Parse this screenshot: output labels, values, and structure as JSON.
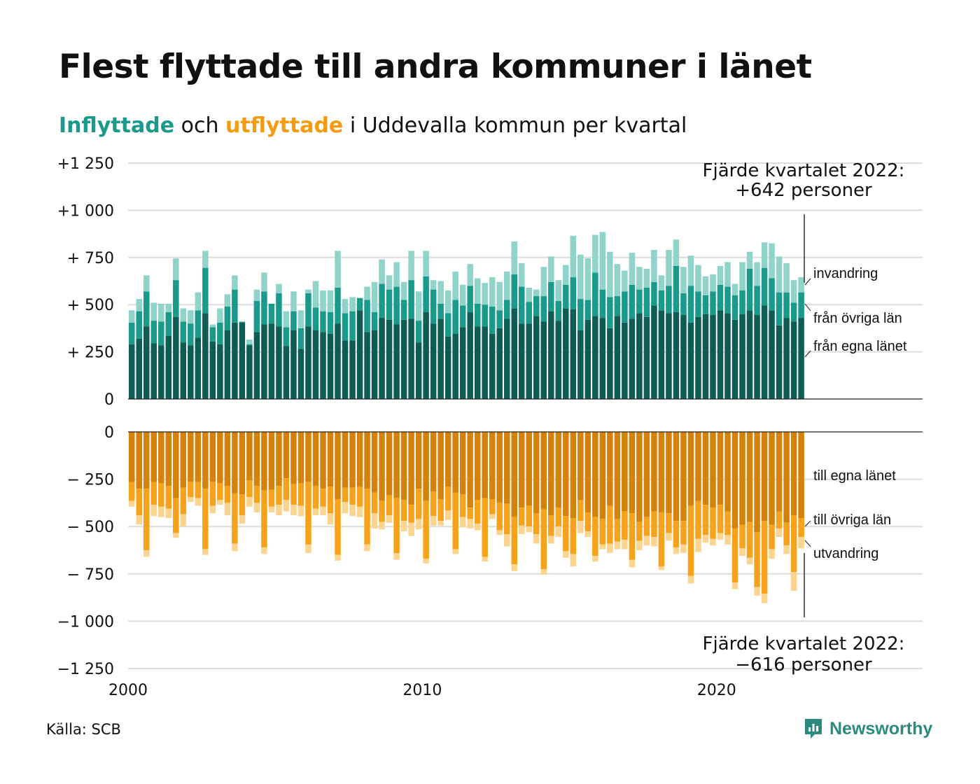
{
  "title": "Flest flyttade till andra kommuner i länet",
  "subtitle": {
    "in_word": "Inflyttade",
    "and_word": "och",
    "out_word": "utflyttade",
    "rest": "i Uddevalla kommun per kvartal"
  },
  "source": "Källa: SCB",
  "brand": "Newsworthy",
  "colors": {
    "in_own": "#0f5c54",
    "in_other": "#1a9a8a",
    "in_immig": "#8fd3ca",
    "out_own": "#d4820a",
    "out_other": "#f7a21b",
    "out_emig": "#fbd48f"
  },
  "chart_data": {
    "type": "bar",
    "stacked": true,
    "frequency": "quarterly",
    "period_start": "2000 Q1",
    "period_end": "2022 Q4",
    "xlim": [
      2000,
      2027
    ],
    "x_ticks": [
      "2000",
      "2010",
      "2020"
    ],
    "y_ticks_top": [
      "+1 250",
      "+1 000",
      "+ 750",
      "+ 500",
      "+ 250",
      "0"
    ],
    "y_ticks_bottom": [
      "0",
      "− 250",
      "− 500",
      "− 750",
      "−1 000",
      "−1 250"
    ],
    "ylim_in": [
      0,
      1250
    ],
    "ylim_out": [
      -1250,
      0
    ],
    "grid": true,
    "annotations": {
      "in": "Fjärde kvartalet 2022:\n+642 personer",
      "out": "Fjärde kvartalet 2022:\n−616 personer"
    },
    "in_labels": [
      "invandring",
      "från övriga län",
      "från egna länet"
    ],
    "out_labels": [
      "till egna länet",
      "till övriga län",
      "utvandring"
    ],
    "inflow": {
      "own_county": [
        290,
        320,
        385,
        295,
        285,
        335,
        435,
        300,
        285,
        325,
        455,
        305,
        290,
        365,
        405,
        405,
        285,
        355,
        395,
        400,
        385,
        280,
        365,
        265,
        385,
        365,
        355,
        345,
        400,
        310,
        310,
        470,
        355,
        365,
        430,
        420,
        395,
        420,
        425,
        300,
        460,
        400,
        425,
        330,
        345,
        380,
        460,
        385,
        385,
        345,
        375,
        425,
        480,
        400,
        400,
        440,
        410,
        465,
        415,
        480,
        475,
        365,
        420,
        440,
        430,
        375,
        440,
        405,
        425,
        455,
        435,
        495,
        470,
        455,
        460,
        445,
        405,
        435,
        450,
        445,
        470,
        455,
        420,
        450,
        470,
        445,
        495,
        470,
        390,
        430,
        410,
        430
      ],
      "other_counties": [
        115,
        145,
        185,
        120,
        125,
        125,
        195,
        110,
        115,
        145,
        240,
        75,
        115,
        125,
        175,
        5,
        5,
        165,
        175,
        105,
        175,
        100,
        100,
        110,
        175,
        120,
        110,
        115,
        190,
        145,
        155,
        65,
        170,
        95,
        180,
        160,
        200,
        105,
        205,
        115,
        190,
        180,
        80,
        125,
        180,
        115,
        140,
        120,
        115,
        145,
        95,
        100,
        180,
        195,
        115,
        105,
        135,
        155,
        105,
        125,
        170,
        165,
        105,
        230,
        150,
        165,
        105,
        165,
        180,
        125,
        155,
        125,
        105,
        145,
        245,
        115,
        195,
        135,
        100,
        125,
        135,
        140,
        130,
        125,
        220,
        155,
        200,
        170,
        175,
        135,
        100,
        135
      ],
      "immigration": [
        65,
        65,
        85,
        95,
        95,
        45,
        115,
        70,
        70,
        95,
        90,
        15,
        75,
        65,
        75,
        0,
        25,
        60,
        100,
        0,
        50,
        85,
        105,
        95,
        20,
        140,
        110,
        115,
        195,
        75,
        75,
        0,
        70,
        160,
        130,
        75,
        130,
        95,
        155,
        155,
        135,
        50,
        120,
        120,
        150,
        110,
        115,
        135,
        115,
        155,
        150,
        150,
        175,
        125,
        75,
        35,
        155,
        135,
        110,
        105,
        220,
        235,
        220,
        200,
        305,
        240,
        170,
        110,
        170,
        120,
        100,
        170,
        80,
        190,
        140,
        140,
        160,
        140,
        100,
        90,
        100,
        130,
        60,
        150,
        90,
        125,
        135,
        185,
        190,
        155,
        120,
        80
      ]
    },
    "outflow": {
      "own_county": [
        265,
        300,
        300,
        265,
        270,
        285,
        350,
        295,
        265,
        265,
        300,
        265,
        270,
        285,
        325,
        330,
        255,
        285,
        310,
        305,
        285,
        245,
        275,
        270,
        265,
        285,
        300,
        290,
        355,
        295,
        295,
        290,
        300,
        320,
        365,
        335,
        350,
        360,
        385,
        300,
        365,
        315,
        355,
        290,
        320,
        330,
        400,
        360,
        350,
        355,
        375,
        380,
        450,
        400,
        390,
        430,
        410,
        440,
        400,
        445,
        455,
        360,
        425,
        450,
        460,
        390,
        460,
        420,
        430,
        475,
        450,
        420,
        425,
        430,
        470,
        470,
        390,
        365,
        385,
        400,
        385,
        420,
        510,
        490,
        475,
        530,
        470,
        490,
        420,
        480,
        440,
        455
      ],
      "other_counties": [
        100,
        140,
        325,
        120,
        125,
        120,
        185,
        140,
        80,
        85,
        320,
        125,
        90,
        90,
        265,
        110,
        90,
        90,
        300,
        90,
        100,
        115,
        110,
        120,
        330,
        120,
        95,
        140,
        295,
        75,
        90,
        105,
        295,
        110,
        110,
        105,
        290,
        110,
        95,
        160,
        305,
        130,
        115,
        125,
        300,
        120,
        60,
        125,
        310,
        80,
        145,
        160,
        250,
        95,
        110,
        110,
        315,
        110,
        100,
        185,
        190,
        110,
        100,
        205,
        135,
        200,
        120,
        150,
        245,
        100,
        100,
        135,
        285,
        105,
        140,
        125,
        370,
        200,
        160,
        165,
        150,
        125,
        285,
        125,
        190,
        290,
        385,
        130,
        90,
        120,
        300,
        100
      ],
      "emigration": [
        30,
        50,
        35,
        60,
        55,
        50,
        25,
        65,
        25,
        40,
        30,
        40,
        25,
        65,
        40,
        45,
        50,
        50,
        35,
        30,
        55,
        60,
        55,
        55,
        45,
        35,
        45,
        60,
        30,
        60,
        60,
        55,
        35,
        80,
        40,
        40,
        35,
        55,
        70,
        55,
        25,
        50,
        25,
        50,
        25,
        55,
        50,
        35,
        25,
        25,
        25,
        65,
        35,
        45,
        30,
        50,
        30,
        40,
        55,
        35,
        65,
        65,
        30,
        30,
        25,
        50,
        40,
        50,
        40,
        50,
        50,
        50,
        20,
        40,
        35,
        45,
        40,
        70,
        40,
        35,
        35,
        50,
        35,
        40,
        35,
        45,
        50,
        50,
        45,
        45,
        100,
        60
      ]
    }
  }
}
